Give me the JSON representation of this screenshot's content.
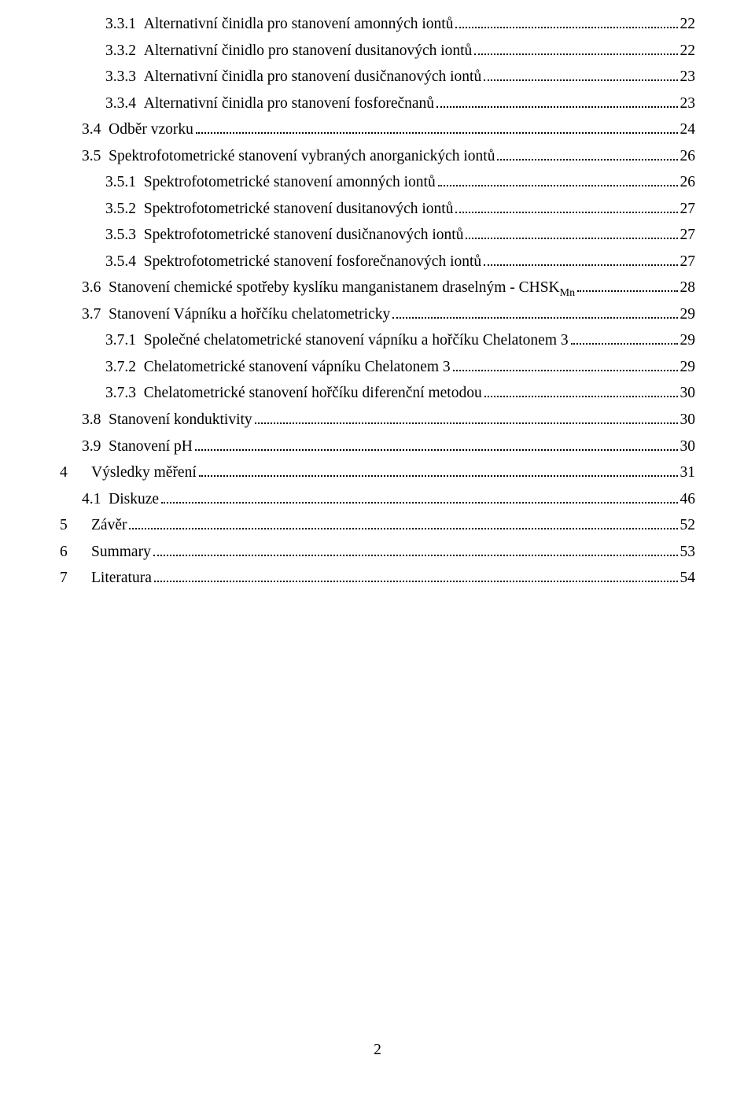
{
  "toc": [
    {
      "level": 3,
      "num": "3.3.1",
      "title": "Alternativní činidla pro stanovení amonných iontů",
      "page": "22"
    },
    {
      "level": 3,
      "num": "3.3.2",
      "title": "Alternativní činidlo pro stanovení dusitanových iontů",
      "page": "22"
    },
    {
      "level": 3,
      "num": "3.3.3",
      "title": "Alternativní činidla pro stanovení dusičnanových iontů",
      "page": "23"
    },
    {
      "level": 3,
      "num": "3.3.4",
      "title": "Alternativní činidla pro stanovení fosforečnanů",
      "page": "23"
    },
    {
      "level": 2,
      "num": "3.4",
      "title": "Odběr vzorku",
      "page": "24"
    },
    {
      "level": 2,
      "num": "3.5",
      "title": "Spektrofotometrické stanovení vybraných anorganických iontů",
      "page": "26"
    },
    {
      "level": 3,
      "num": "3.5.1",
      "title": "Spektrofotometrické stanovení amonných iontů",
      "page": "26"
    },
    {
      "level": 3,
      "num": "3.5.2",
      "title": "Spektrofotometrické stanovení dusitanových iontů",
      "page": "27"
    },
    {
      "level": 3,
      "num": "3.5.3",
      "title": "Spektrofotometrické stanovení dusičnanových iontů",
      "page": "27"
    },
    {
      "level": 3,
      "num": "3.5.4",
      "title": "Spektrofotometrické stanovení fosforečnanových iontů",
      "page": "27"
    },
    {
      "level": 2,
      "num": "3.6",
      "title": "Stanovení chemické spotřeby kyslíku manganistanem draselným - CHSK",
      "sub": "Mn",
      "page": "28"
    },
    {
      "level": 2,
      "num": "3.7",
      "title": "Stanovení Vápníku a hořčíku chelatometricky",
      "page": "29"
    },
    {
      "level": 3,
      "num": "3.7.1",
      "title": "Společné chelatometrické stanovení vápníku a hořčíku Chelatonem 3",
      "page": "29"
    },
    {
      "level": 3,
      "num": "3.7.2",
      "title": "Chelatometrické stanovení vápníku Chelatonem 3",
      "page": "29"
    },
    {
      "level": 3,
      "num": "3.7.3",
      "title": "Chelatometrické stanovení hořčíku diferenční metodou",
      "page": "30"
    },
    {
      "level": 2,
      "num": "3.8",
      "title": "Stanovení konduktivity",
      "page": "30"
    },
    {
      "level": 2,
      "num": "3.9",
      "title": "Stanovení pH",
      "page": "30"
    },
    {
      "level": 1,
      "num": "4",
      "title": "Výsledky měření",
      "page": "31"
    },
    {
      "level": 2,
      "num": "4.1",
      "title": "Diskuze",
      "page": "46"
    },
    {
      "level": 1,
      "num": "5",
      "title": "Závěr",
      "page": "52"
    },
    {
      "level": 1,
      "num": "6",
      "title": "Summary",
      "page": "53"
    },
    {
      "level": 1,
      "num": "7",
      "title": "Literatura",
      "page": "54"
    }
  ],
  "footer": {
    "page_number": "2"
  }
}
